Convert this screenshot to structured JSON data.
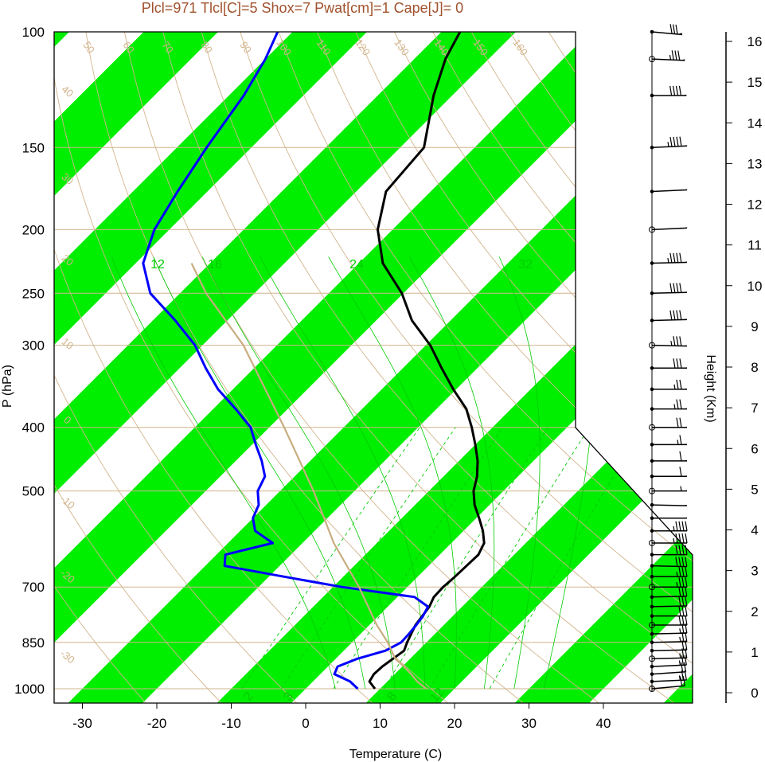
{
  "title": "Plcl=971 Tlcl[C]=5 Shox=7 Pwat[cm]=1 Cape[J]= 0",
  "colors": {
    "band": "#00ee00",
    "ref": "#d2b48c",
    "refdark": "#c8a070",
    "moist": "#00cc00",
    "temp": "#000000",
    "dew": "#0000ff",
    "parcel": "#c8ad7f",
    "title": "#a0522d"
  },
  "chart_data": {
    "type": "line",
    "title": "Plcl=971 Tlcl[C]=5 Shox=7 Pwat[cm]=1 Cape[J]= 0",
    "xlabel": "Temperature (C)",
    "ylabel": "P (hPa)",
    "right_axis_label": "Height (Km)",
    "x_ticks": [
      "-30",
      "-20",
      "-10",
      "0",
      "10",
      "20",
      "30",
      "40"
    ],
    "p_ticks": [
      "100",
      "150",
      "200",
      "250",
      "300",
      "400",
      "500",
      "700",
      "850",
      "1000"
    ],
    "height_ticks": [
      "0",
      "1",
      "2",
      "3",
      "4",
      "5",
      "6",
      "7",
      "8",
      "9",
      "10",
      "11",
      "12",
      "13",
      "14",
      "15",
      "16"
    ],
    "xlim": [
      -33,
      38
    ],
    "plim": [
      1050,
      100
    ],
    "series": [
      {
        "kind": "temperature",
        "pressure": [
          1000,
          975,
          950,
          925,
          900,
          875,
          850,
          825,
          800,
          775,
          750,
          725,
          700,
          675,
          650,
          625,
          600,
          575,
          550,
          525,
          500,
          475,
          450,
          425,
          400,
          375,
          350,
          325,
          300,
          275,
          250,
          225,
          200,
          175,
          150,
          125,
          110,
          100
        ],
        "values": [
          9.3,
          7.6,
          7.2,
          7.3,
          7.7,
          8.1,
          7.4,
          6.8,
          6.2,
          5.9,
          5.6,
          4.9,
          4.8,
          5.0,
          5.1,
          5.2,
          4.4,
          2.6,
          0.4,
          -2.0,
          -4.0,
          -5.5,
          -7.5,
          -10.0,
          -12.8,
          -16.0,
          -20.4,
          -24.8,
          -29.4,
          -35.2,
          -40.2,
          -46.8,
          -52.0,
          -56.0,
          -56.8,
          -62.5,
          -65.8,
          -67.5
        ]
      },
      {
        "kind": "dewpoint",
        "pressure": [
          1000,
          975,
          950,
          925,
          900,
          875,
          850,
          825,
          800,
          775,
          750,
          725,
          700,
          675,
          650,
          625,
          600,
          575,
          550,
          525,
          500,
          475,
          450,
          425,
          400,
          375,
          350,
          325,
          300,
          275,
          250,
          225,
          200,
          175,
          150,
          125,
          110,
          100
        ],
        "values": [
          7.0,
          5.0,
          1.9,
          1.3,
          2.9,
          5.6,
          6.6,
          6.5,
          6.3,
          6.0,
          5.4,
          2.3,
          -8.8,
          -18.0,
          -27.4,
          -28.8,
          -24.0,
          -28.0,
          -30.0,
          -31.0,
          -33.0,
          -34.0,
          -36.5,
          -39.5,
          -42.5,
          -47.0,
          -52.0,
          -56.5,
          -61.0,
          -67.0,
          -74.0,
          -79.0,
          -82.0,
          -84.0,
          -86.0,
          -88.0,
          -90.0,
          -92.0
        ]
      },
      {
        "kind": "parcel",
        "pressure": [
          1000,
          975,
          950,
          925,
          900,
          850,
          800,
          700,
          600,
          500,
          400,
          300,
          250,
          225
        ],
        "values": [
          16.2,
          14.0,
          12.2,
          10.2,
          8.0,
          4.8,
          1.0,
          -6.5,
          -15.8,
          -25.5,
          -38.0,
          -54.5,
          -66.5,
          -72.5
        ]
      }
    ],
    "dry_adiabats_labels": [
      "50",
      "60",
      "70",
      "80",
      "90",
      "100",
      "110",
      "120",
      "130",
      "140",
      "150",
      "160"
    ],
    "isotherm_labels_left": [
      "40",
      "30",
      "20",
      "10",
      "0",
      "-10",
      "-20",
      "-30"
    ],
    "isotherm_labels_right": [
      "30",
      "20",
      "10",
      "0",
      "10",
      "20",
      "30"
    ],
    "moist_adiabat_labels": [
      "12",
      "16",
      "24",
      "32"
    ],
    "mixing_ratio_labels": [
      "2",
      "3",
      "8",
      "12"
    ],
    "wind": {
      "pressure": [
        1000,
        975,
        950,
        925,
        900,
        875,
        850,
        825,
        800,
        775,
        750,
        725,
        700,
        675,
        650,
        625,
        600,
        575,
        550,
        525,
        500,
        475,
        450,
        425,
        400,
        375,
        350,
        325,
        300,
        275,
        250,
        225,
        200,
        175,
        150,
        125,
        110,
        100
      ],
      "speed_kt": [
        20,
        25,
        20,
        25,
        25,
        20,
        25,
        25,
        30,
        30,
        30,
        30,
        35,
        35,
        40,
        40,
        45,
        45,
        50,
        50,
        55,
        60,
        60,
        65,
        70,
        75,
        75,
        80,
        85,
        90,
        90,
        95,
        100,
        100,
        95,
        90,
        85,
        80
      ],
      "dir_deg": [
        250,
        260,
        255,
        260,
        265,
        265,
        265,
        265,
        270,
        270,
        265,
        265,
        270,
        270,
        275,
        270,
        270,
        270,
        270,
        275,
        270,
        270,
        270,
        270,
        270,
        270,
        270,
        270,
        275,
        275,
        275,
        275,
        270,
        270,
        270,
        280,
        290,
        300
      ]
    }
  }
}
